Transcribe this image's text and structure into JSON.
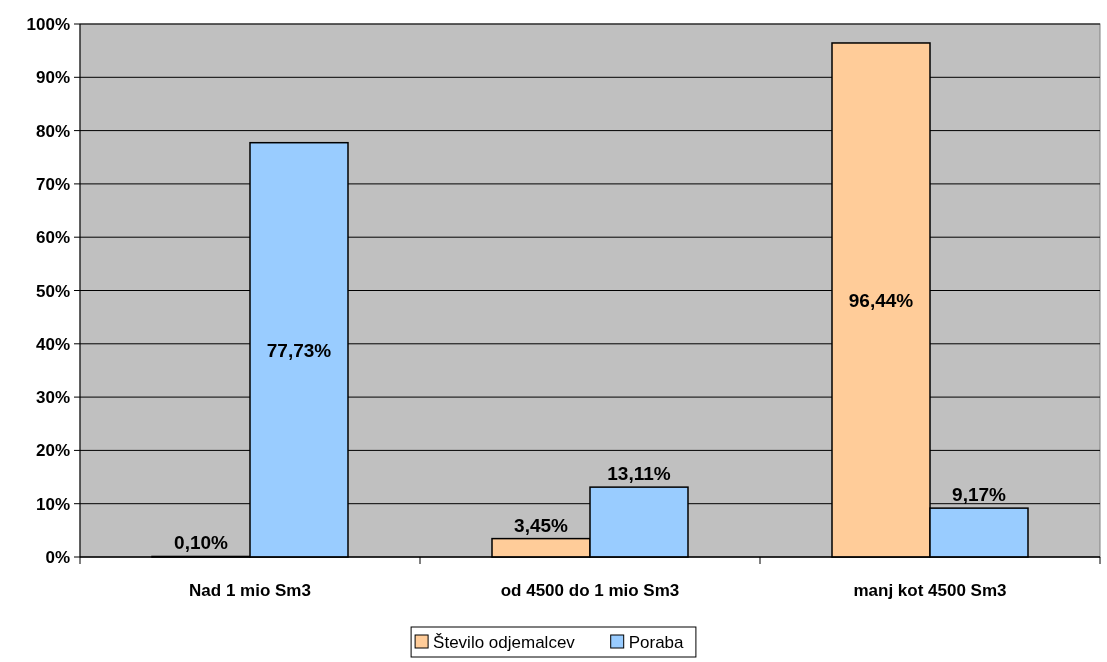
{
  "chart_data": {
    "type": "bar",
    "categories": [
      "Nad 1 mio Sm3",
      "od 4500 do 1 mio Sm3",
      "manj kot 4500 Sm3"
    ],
    "series": [
      {
        "name": "Število odjemalcev",
        "color": "#ffcc99",
        "values": [
          0.1,
          3.45,
          96.44
        ],
        "value_labels": [
          "0,10%",
          "3,45%",
          "96,44%"
        ]
      },
      {
        "name": "Poraba",
        "color": "#99ccff",
        "values": [
          77.73,
          13.11,
          9.17
        ],
        "value_labels": [
          "77,73%",
          "13,11%",
          "9,17%"
        ]
      }
    ],
    "ylim": [
      0,
      100
    ],
    "yticks": [
      {
        "value": 0,
        "label": "0%"
      },
      {
        "value": 10,
        "label": "10%"
      },
      {
        "value": 20,
        "label": "20%"
      },
      {
        "value": 30,
        "label": "30%"
      },
      {
        "value": 40,
        "label": "40%"
      },
      {
        "value": 50,
        "label": "50%"
      },
      {
        "value": 60,
        "label": "60%"
      },
      {
        "value": 70,
        "label": "70%"
      },
      {
        "value": 80,
        "label": "80%"
      },
      {
        "value": 90,
        "label": "90%"
      },
      {
        "value": 100,
        "label": "100%"
      }
    ],
    "grid": "y",
    "legend": "bottom"
  }
}
